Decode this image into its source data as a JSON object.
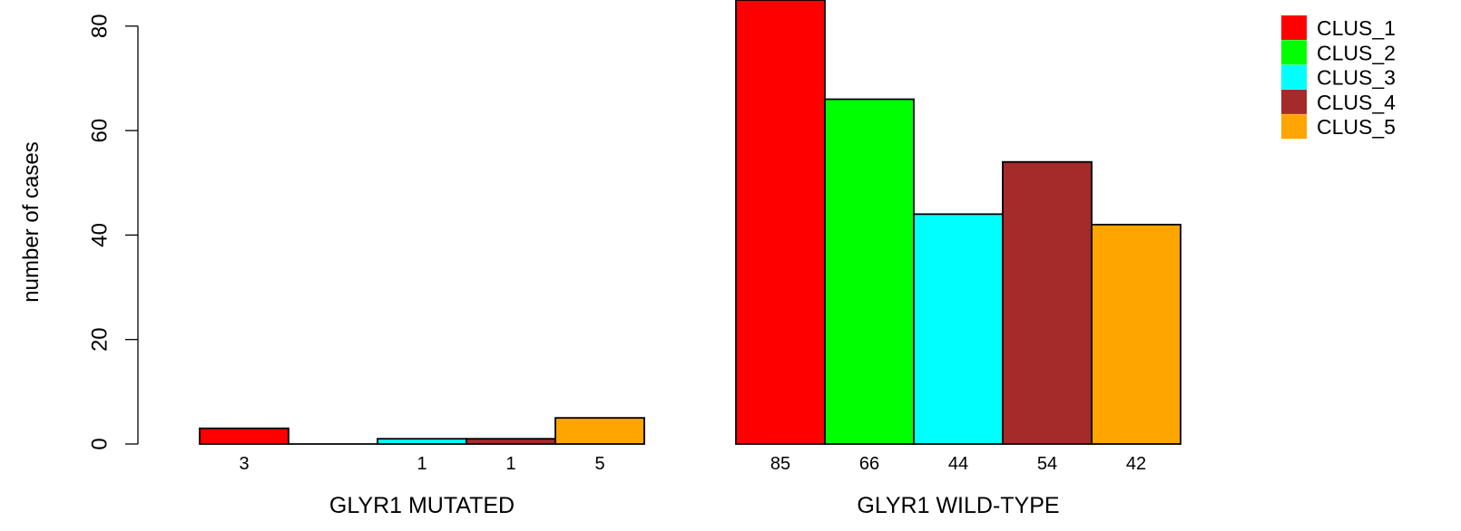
{
  "chart_data": {
    "type": "bar",
    "ylabel": "number of cases",
    "ylim": [
      0,
      85
    ],
    "yticks": [
      0,
      20,
      40,
      60,
      80
    ],
    "categories": [
      "CLUS_1",
      "CLUS_2",
      "CLUS_3",
      "CLUS_4",
      "CLUS_5"
    ],
    "colors": [
      "#ff0000",
      "#00ff00",
      "#00ffff",
      "#a52a2a",
      "#ffa500"
    ],
    "groups": [
      {
        "name": "GLYR1 MUTATED",
        "values": [
          3,
          0,
          1,
          1,
          5
        ],
        "labels": [
          "3",
          "",
          "1",
          "1",
          "5"
        ]
      },
      {
        "name": "GLYR1 WILD-TYPE",
        "values": [
          85,
          66,
          44,
          54,
          42
        ],
        "labels": [
          "85",
          "66",
          "44",
          "54",
          "42"
        ]
      }
    ],
    "legend": {
      "position": "top-right",
      "entries": [
        "CLUS_1",
        "CLUS_2",
        "CLUS_3",
        "CLUS_4",
        "CLUS_5"
      ]
    },
    "grid": false
  }
}
